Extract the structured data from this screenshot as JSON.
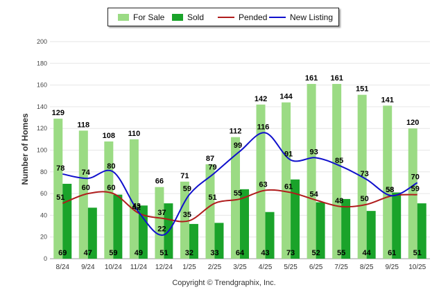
{
  "chart_data": {
    "type": "bar",
    "categories": [
      "8/24",
      "9/24",
      "10/24",
      "11/24",
      "12/24",
      "1/25",
      "2/25",
      "3/25",
      "4/25",
      "5/25",
      "6/25",
      "7/25",
      "8/25",
      "9/25",
      "10/25"
    ],
    "series": [
      {
        "name": "For Sale",
        "kind": "bar",
        "color": "#9bdb84",
        "values": [
          129,
          118,
          108,
          110,
          66,
          71,
          87,
          112,
          142,
          144,
          161,
          161,
          151,
          141,
          120
        ]
      },
      {
        "name": "Sold",
        "kind": "bar",
        "color": "#1aa32a",
        "values": [
          69,
          47,
          59,
          49,
          51,
          32,
          33,
          64,
          43,
          73,
          52,
          55,
          44,
          61,
          51
        ]
      },
      {
        "name": "Pended",
        "kind": "line",
        "color": "#b01c1c",
        "values": [
          51,
          60,
          60,
          42,
          37,
          35,
          51,
          55,
          63,
          61,
          54,
          48,
          50,
          58,
          59
        ]
      },
      {
        "name": "New Listing",
        "kind": "line",
        "color": "#1010cc",
        "values": [
          78,
          74,
          80,
          43,
          22,
          59,
          79,
          99,
          116,
          91,
          93,
          85,
          73,
          58,
          70
        ]
      }
    ],
    "ylabel": "Number of Homes",
    "xlabel": "",
    "ylim": [
      0,
      200
    ],
    "yticks": [
      0,
      20,
      40,
      60,
      80,
      100,
      120,
      140,
      160,
      180,
      200
    ],
    "grid": true,
    "legend": "top-center"
  },
  "legend": [
    {
      "label": "For Sale",
      "color": "#9bdb84",
      "kind": "bar"
    },
    {
      "label": "Sold",
      "color": "#1aa32a",
      "kind": "bar"
    },
    {
      "label": "Pended",
      "color": "#b01c1c",
      "kind": "line"
    },
    {
      "label": "New Listing",
      "color": "#1010cc",
      "kind": "line"
    }
  ],
  "footer": {
    "copyright": "Copyright © Trendgraphix, Inc."
  }
}
